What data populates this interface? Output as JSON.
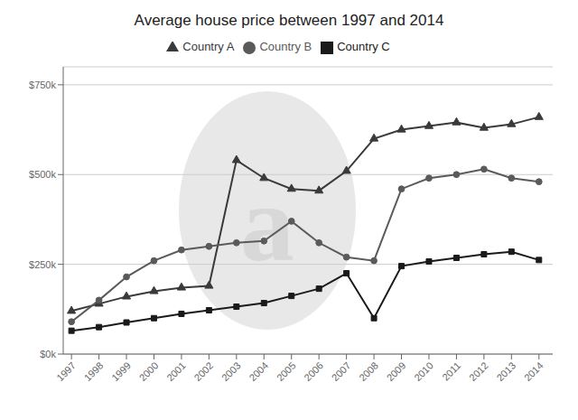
{
  "chart_data": {
    "type": "line",
    "title": "Average house price between 1997 and 2014",
    "annotations": [
      "a"
    ],
    "x": [
      1997,
      1998,
      1999,
      2000,
      2001,
      2002,
      2003,
      2004,
      2005,
      2006,
      2007,
      2008,
      2009,
      2010,
      2011,
      2012,
      2013,
      2014
    ],
    "xlim": [
      1996.7,
      2014.5
    ],
    "xticks": [
      1997,
      1998,
      1999,
      2000,
      2001,
      2002,
      2003,
      2004,
      2005,
      2006,
      2007,
      2008,
      2009,
      2010,
      2011,
      2012,
      2013,
      2014
    ],
    "ylim": [
      0,
      800000
    ],
    "yticks": [
      {
        "value": 0,
        "label": "$0k"
      },
      {
        "value": 250000,
        "label": "$250k"
      },
      {
        "value": 500000,
        "label": "$500k"
      },
      {
        "value": 750000,
        "label": "$750k"
      }
    ],
    "grid": true,
    "legend": "top",
    "series": [
      {
        "name": "Country A",
        "color": "#3a3a3a",
        "marker": "triangle",
        "values": [
          120000,
          140000,
          160000,
          175000,
          185000,
          190000,
          540000,
          490000,
          460000,
          455000,
          510000,
          600000,
          625000,
          635000,
          645000,
          630000,
          640000,
          660000
        ]
      },
      {
        "name": "Country B",
        "color": "#5a5a5a",
        "marker": "circle",
        "values": [
          90000,
          150000,
          215000,
          260000,
          290000,
          300000,
          310000,
          315000,
          370000,
          310000,
          270000,
          260000,
          460000,
          490000,
          500000,
          515000,
          490000,
          480000
        ]
      },
      {
        "name": "Country C",
        "color": "#1a1a1a",
        "marker": "square",
        "values": [
          65000,
          75000,
          88000,
          100000,
          112000,
          122000,
          132000,
          142000,
          162000,
          182000,
          225000,
          100000,
          245000,
          258000,
          268000,
          278000,
          285000,
          262000
        ]
      }
    ]
  }
}
